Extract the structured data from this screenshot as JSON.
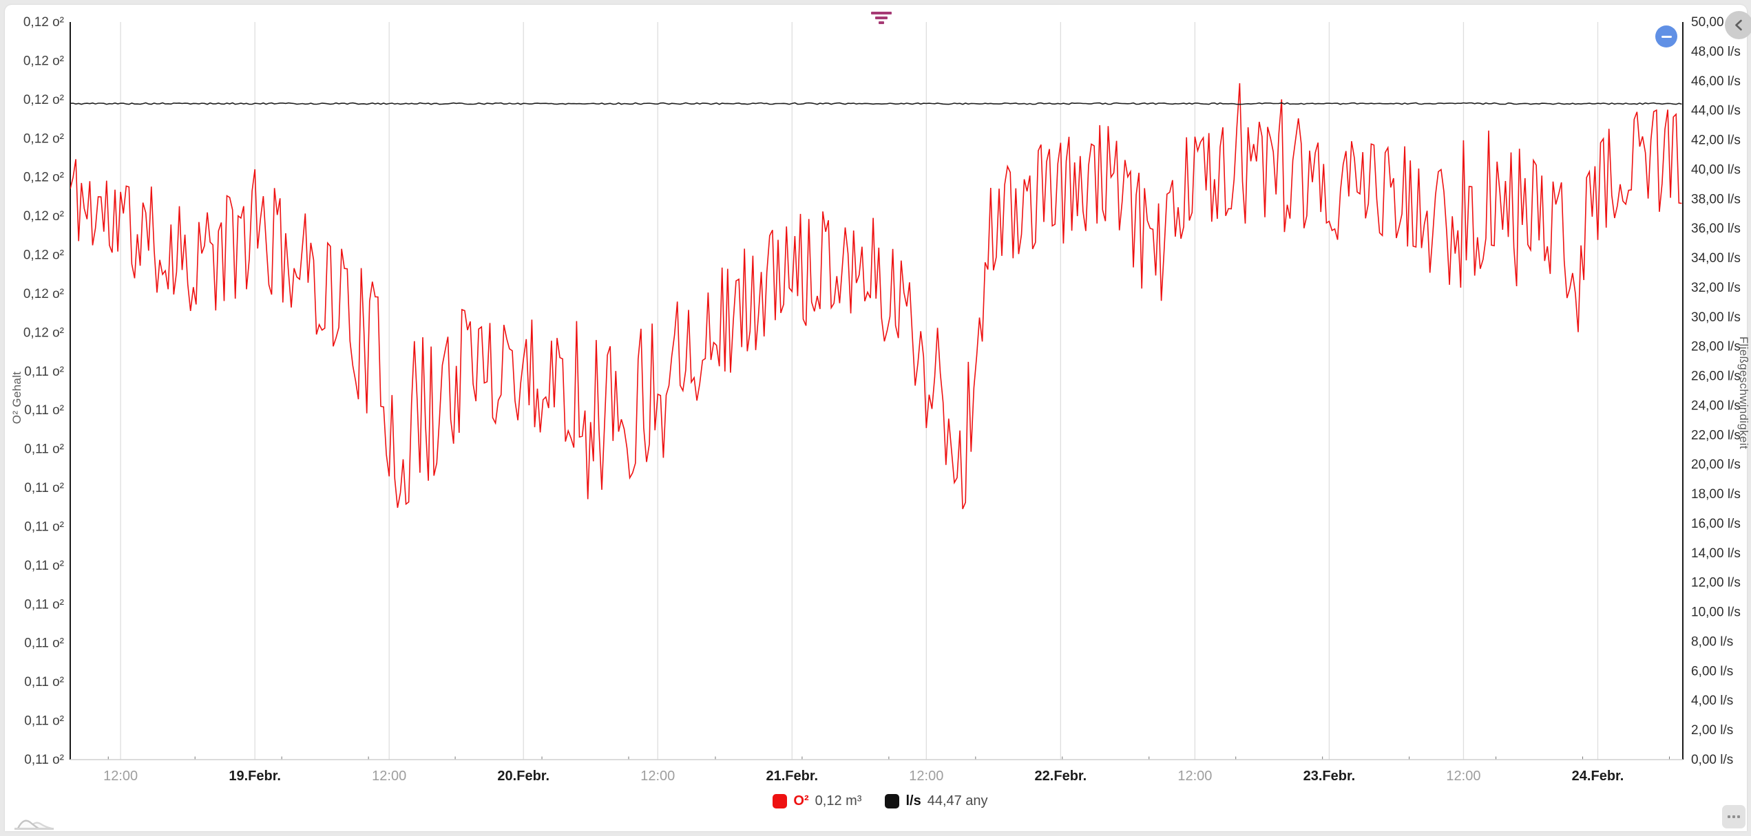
{
  "page": {
    "background": "#e9e9e9",
    "card_background": "#ffffff"
  },
  "toolbar": {
    "filter_icon_color": "#a63a74"
  },
  "buttons": {
    "zoom_out": {
      "color": "#6090e5",
      "glyph": "minus"
    },
    "collapse_panel": {
      "color": "#cdcdcd",
      "glyph": "chevron-left"
    },
    "more_options": {
      "glyph": "three-dots"
    },
    "navigator_toggle": {
      "glyph": "area-preview"
    }
  },
  "chart": {
    "left_axis": {
      "title": "O² Gehalt",
      "tick_labels": [
        "0,12 o²",
        "0,12 o²",
        "0,12 o²",
        "0,12 o²",
        "0,12 o²",
        "0,12 o²",
        "0,12 o²",
        "0,12 o²",
        "0,12 o²",
        "0,11 o²",
        "0,11 o²",
        "0,11 o²",
        "0,11 o²",
        "0,11 o²",
        "0,11 o²",
        "0,11 o²",
        "0,11 o²",
        "0,11 o²",
        "0,11 o²",
        "0,11 o²"
      ]
    },
    "right_axis": {
      "title": "Fließgeschwindigkeit",
      "tick_labels": [
        "50,00 l/s",
        "48,00 l/s",
        "46,00 l/s",
        "44,00 l/s",
        "42,00 l/s",
        "40,00 l/s",
        "38,00 l/s",
        "36,00 l/s",
        "34,00 l/s",
        "32,00 l/s",
        "30,00 l/s",
        "28,00 l/s",
        "26,00 l/s",
        "24,00 l/s",
        "22,00 l/s",
        "20,00 l/s",
        "18,00 l/s",
        "16,00 l/s",
        "14,00 l/s",
        "12,00 l/s",
        "10,00 l/s",
        "8,00 l/s",
        "6,00 l/s",
        "4,00 l/s",
        "2,00 l/s",
        "0,00 l/s"
      ]
    },
    "x_axis": {
      "labels": [
        {
          "text": "12:00",
          "type": "time"
        },
        {
          "text": "19.Febr.",
          "type": "day"
        },
        {
          "text": "12:00",
          "type": "time"
        },
        {
          "text": "20.Febr.",
          "type": "day"
        },
        {
          "text": "12:00",
          "type": "time"
        },
        {
          "text": "21.Febr.",
          "type": "day"
        },
        {
          "text": "12:00",
          "type": "time"
        },
        {
          "text": "22.Febr.",
          "type": "day"
        },
        {
          "text": "12:00",
          "type": "time"
        },
        {
          "text": "23.Febr.",
          "type": "day"
        },
        {
          "text": "12:00",
          "type": "time"
        },
        {
          "text": "24.Febr.",
          "type": "day"
        }
      ]
    },
    "legend": [
      {
        "name": "O²",
        "value": "0,12 m³",
        "color": "#ee1111"
      },
      {
        "name": "l/s",
        "value": "44,47 any",
        "color": "#111111"
      }
    ]
  },
  "chart_data": {
    "type": "line",
    "title": "",
    "xlabel": "",
    "x_range_hours": [
      0,
      144.1
    ],
    "x_epoch": "18.Febr. 07:30",
    "x_tick_positions_hours": [
      4.5,
      16.5,
      28.5,
      40.5,
      52.5,
      64.5,
      76.5,
      88.5,
      100.5,
      112.5,
      124.5,
      136.5
    ],
    "left_axis_range": [
      0.105,
      0.124
    ],
    "right_axis_range": [
      0,
      50
    ],
    "grid": "vertical-only",
    "legend_position": "bottom-center",
    "series": [
      {
        "name": "O²",
        "axis": "left",
        "unit": "m³",
        "color": "#ee1111",
        "current_value": 0.12,
        "sample_step_hours": 0.25,
        "noise_seed": 11,
        "noise_shape_exponent": 0.65,
        "outlier_probability": 0.04,
        "outlier_gain": 1.7,
        "envelope_points": [
          [
            0,
            0.1196,
            0.0012
          ],
          [
            3,
            0.119,
            0.0013
          ],
          [
            8,
            0.1183,
            0.0014
          ],
          [
            12.6,
            0.1178,
            0.0015
          ],
          [
            16.6,
            0.1186,
            0.0015
          ],
          [
            20.6,
            0.1178,
            0.0014
          ],
          [
            24.3,
            0.1168,
            0.0016
          ],
          [
            27.4,
            0.1152,
            0.002
          ],
          [
            29.5,
            0.1132,
            0.0022
          ],
          [
            32,
            0.114,
            0.0022
          ],
          [
            34.8,
            0.115,
            0.0018
          ],
          [
            38.5,
            0.1153,
            0.0016
          ],
          [
            42.8,
            0.1148,
            0.0016
          ],
          [
            47.1,
            0.1143,
            0.0017
          ],
          [
            50.5,
            0.114,
            0.002
          ],
          [
            53.8,
            0.1157,
            0.0016
          ],
          [
            58.2,
            0.1163,
            0.0015
          ],
          [
            62.5,
            0.1172,
            0.0015
          ],
          [
            66.8,
            0.118,
            0.0014
          ],
          [
            71.1,
            0.1178,
            0.0014
          ],
          [
            74.8,
            0.1165,
            0.0016
          ],
          [
            77.5,
            0.1142,
            0.0015
          ],
          [
            79.8,
            0.1126,
            0.0014
          ],
          [
            80.8,
            0.115,
            0.002
          ],
          [
            81.8,
            0.1182,
            0.0015
          ],
          [
            83.4,
            0.119,
            0.0013
          ],
          [
            87.7,
            0.1196,
            0.0014
          ],
          [
            92.6,
            0.12,
            0.0014
          ],
          [
            96.3,
            0.1182,
            0.0016
          ],
          [
            100,
            0.12,
            0.0013
          ],
          [
            104.9,
            0.1203,
            0.0013
          ],
          [
            111.1,
            0.1195,
            0.0014
          ],
          [
            116.6,
            0.1198,
            0.0014
          ],
          [
            120.6,
            0.119,
            0.0016
          ],
          [
            124.6,
            0.1186,
            0.0015
          ],
          [
            129.5,
            0.1196,
            0.0014
          ],
          [
            133.8,
            0.1182,
            0.0016
          ],
          [
            137.5,
            0.1199,
            0.0014
          ],
          [
            141.2,
            0.1204,
            0.0015
          ],
          [
            144.1,
            0.1204,
            0.0014
          ]
        ]
      },
      {
        "name": "l/s",
        "axis": "right",
        "unit": "l/s",
        "color": "#1c1c1c",
        "constant_value": 44.47,
        "jitter": 0.05,
        "sample_step_hours": 0.25,
        "noise_seed": 5
      }
    ]
  }
}
